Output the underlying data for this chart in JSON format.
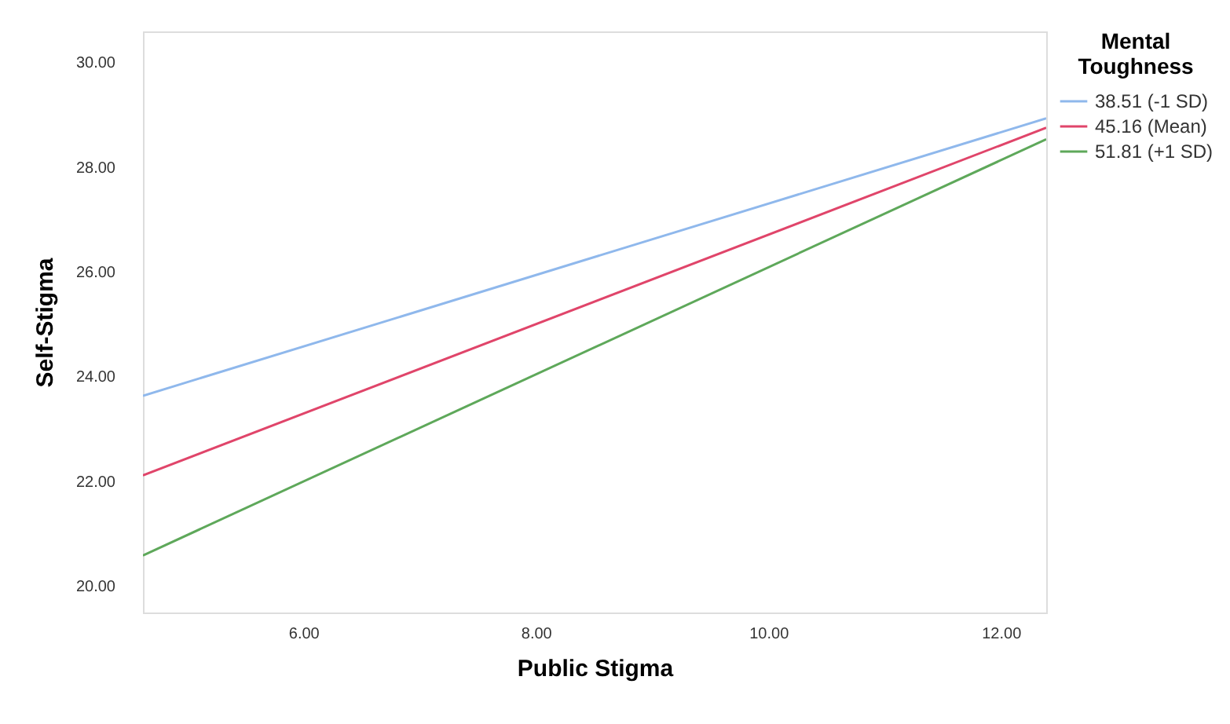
{
  "chart_data": {
    "type": "line",
    "xlabel": "Public Stigma",
    "ylabel": "Self-Stigma",
    "legend_title": "Mental Toughness",
    "legend": "top right",
    "grid": false,
    "x": [
      4.62,
      12.39
    ],
    "series": [
      {
        "name": "38.51 (-1 SD)",
        "color": "#8fb8ec",
        "values": [
          23.63,
          28.93
        ]
      },
      {
        "name": "45.16 (Mean)",
        "color": "#e0456a",
        "values": [
          22.11,
          28.75
        ]
      },
      {
        "name": "51.81 (+1 SD)",
        "color": "#5ea85a",
        "values": [
          20.58,
          28.53
        ]
      }
    ],
    "xlim": [
      4.62,
      12.39
    ],
    "ylim": [
      19.49,
      30.59
    ],
    "xticks": [
      {
        "value": 6,
        "label": "6.00"
      },
      {
        "value": 8,
        "label": "8.00"
      },
      {
        "value": 10,
        "label": "10.00"
      },
      {
        "value": 12,
        "label": "12.00"
      }
    ],
    "yticks": [
      {
        "value": 20,
        "label": "20.00"
      },
      {
        "value": 22,
        "label": "22.00"
      },
      {
        "value": 24,
        "label": "24.00"
      },
      {
        "value": 26,
        "label": "26.00"
      },
      {
        "value": 28,
        "label": "28.00"
      },
      {
        "value": 30,
        "label": "30.00"
      }
    ]
  }
}
